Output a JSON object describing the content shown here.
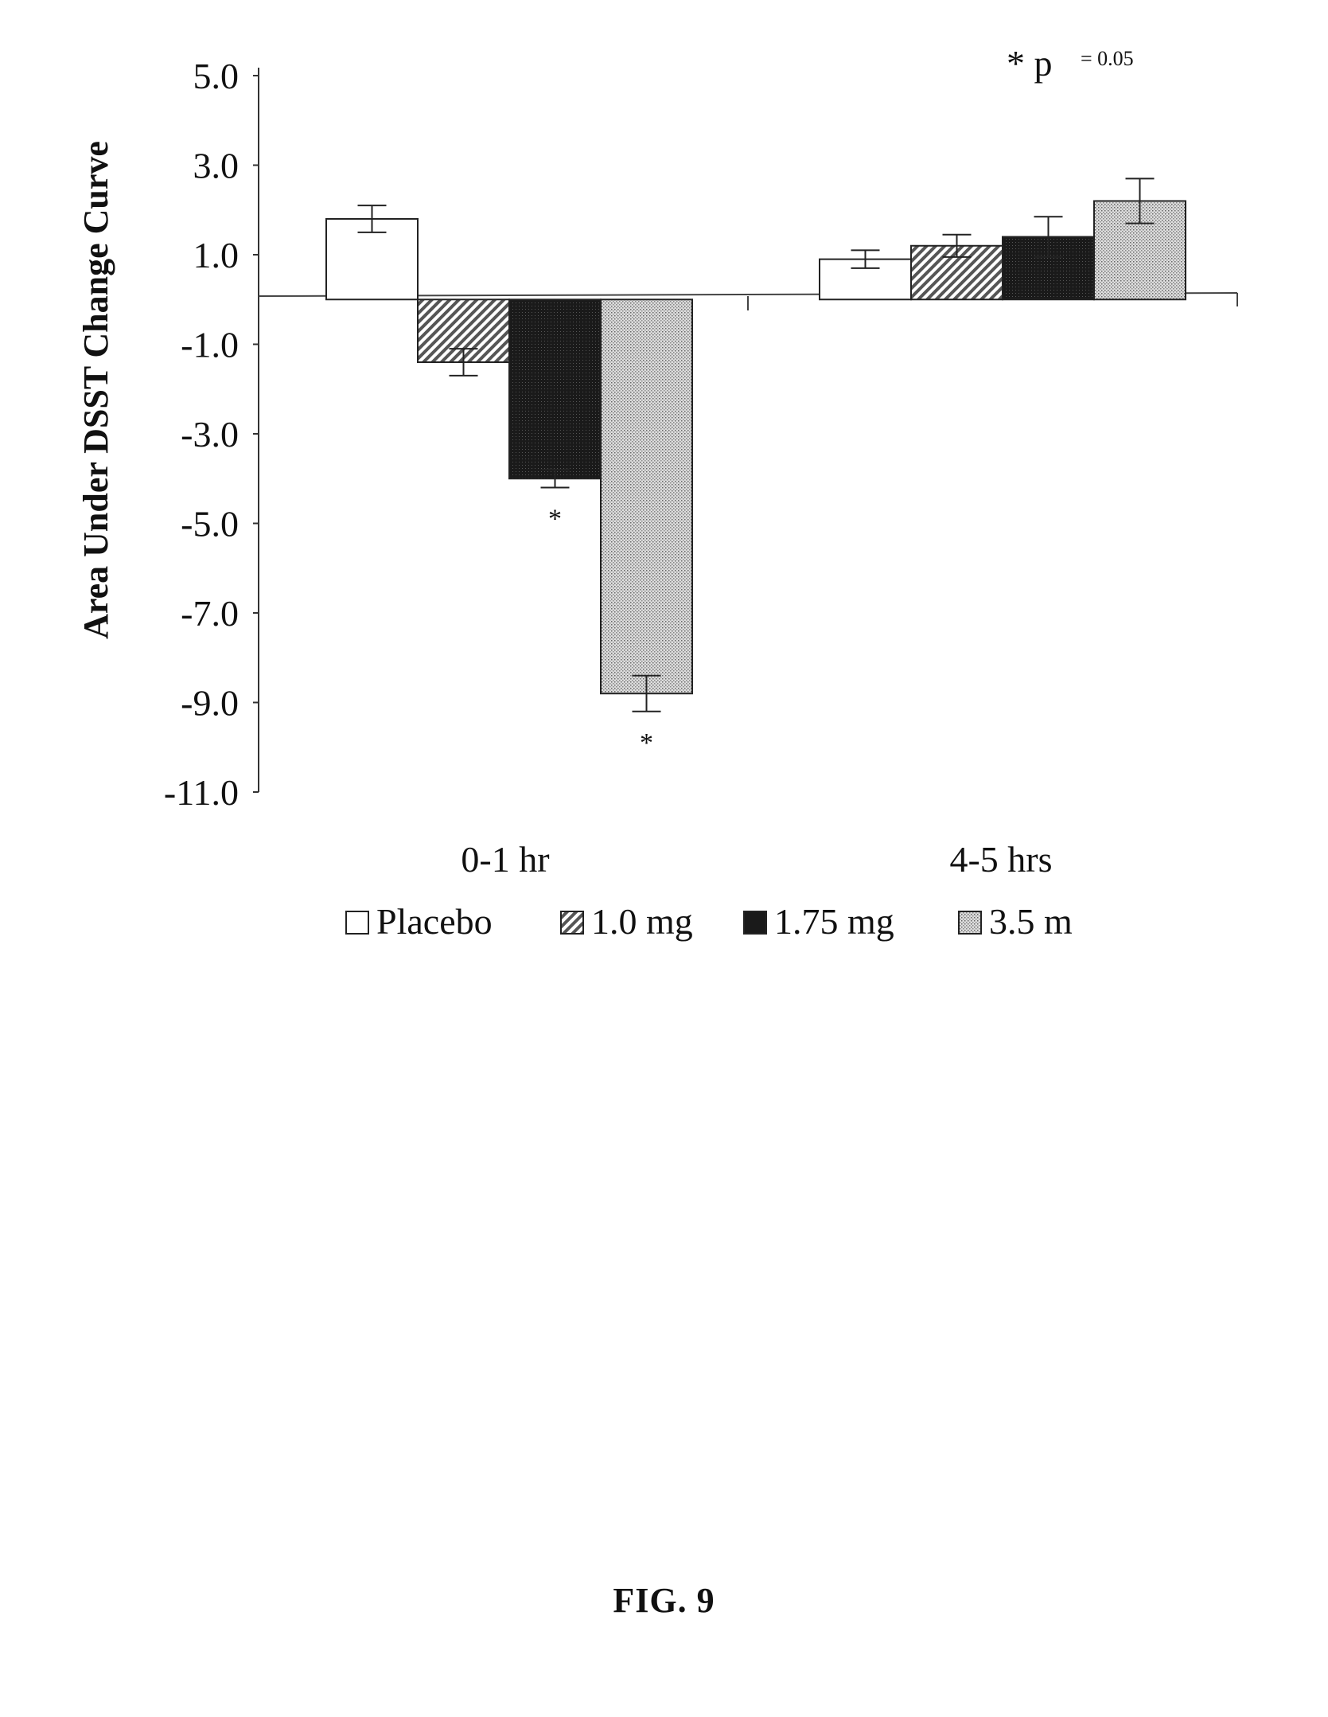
{
  "figure": {
    "caption": "FIG. 9"
  },
  "chart_data": {
    "type": "bar",
    "title": "",
    "annotation_symbol": "* p",
    "annotation_value": "= 0.05",
    "ylabel": "Area Under DSST Change Curve",
    "xlabel": "",
    "ylim": [
      -11.0,
      5.0
    ],
    "yticks": [
      "5.0",
      "3.0",
      "1.0",
      "-1.0",
      "-3.0",
      "-5.0",
      "-7.0",
      "-9.0",
      "-11.0"
    ],
    "yticks_values": [
      5,
      3,
      1,
      -1,
      -3,
      -5,
      -7,
      -9,
      -11
    ],
    "categories": [
      "0-1 hr",
      "4-5 hrs"
    ],
    "series": [
      {
        "name": "Placebo",
        "values": [
          1.8,
          0.9
        ],
        "errors": [
          0.3,
          0.2
        ],
        "color": "#ffffff",
        "pattern": "none",
        "significant": [
          false,
          false
        ]
      },
      {
        "name": "1.0 mg",
        "values": [
          -1.4,
          1.2
        ],
        "errors": [
          0.3,
          0.25
        ],
        "color": "#777777",
        "pattern": "diagonal",
        "significant": [
          false,
          false
        ]
      },
      {
        "name": "1.75 mg",
        "values": [
          -4.0,
          1.4
        ],
        "errors": [
          0.2,
          0.45
        ],
        "color": "#222222",
        "pattern": "solid",
        "significant": [
          true,
          false
        ]
      },
      {
        "name": "3.5 m",
        "values": [
          -8.8,
          2.2
        ],
        "errors": [
          0.4,
          0.5
        ],
        "color": "#bbbbbb",
        "pattern": "stipple",
        "significant": [
          true,
          false
        ]
      }
    ],
    "significance_marker": "*",
    "grid": false,
    "legend": "bottom"
  }
}
